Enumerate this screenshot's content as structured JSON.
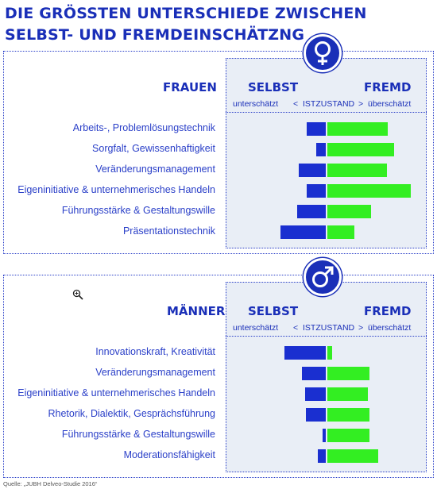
{
  "title": {
    "line1": "DIE GRÖSSTEN UNTERSCHIEDE ZWISCHEN",
    "line2": "SELBST- UND FREMDEINSCHÄTZNG"
  },
  "header": {
    "selbst": "SELBST",
    "fremd": "FREMD",
    "under": "unterschätzt",
    "lt": "<",
    "ist": "ISTZUSTAND",
    "gt": ">",
    "over": "überschätzt"
  },
  "icons": {
    "female": "female-symbol-icon",
    "male": "male-symbol-icon",
    "zoom": "zoom-in-icon"
  },
  "colors": {
    "primary": "#1a2fb8",
    "selbst_bar": "#1a2fd0",
    "fremd_bar": "#33ee22",
    "panel_shade": "#e9eef6"
  },
  "source": "Quelle: „JUBH Delveo-Studie 2016“",
  "chart_data": [
    {
      "type": "bar",
      "group": "FRAUEN",
      "categories": [
        "Arbeits-,  Problemlösungstechnik",
        "Sorgfalt, Gewissenhaftigkeit",
        "Veränderungsmanagement",
        "Eigeninitiative & unternehmerisches Handeln",
        "Führungsstärke & Gestaltungswille",
        "Präsentationstechnik"
      ],
      "series": [
        {
          "name": "SELBST",
          "values": [
            -0.95,
            -0.5,
            -1.35,
            -0.95,
            -1.45,
            -2.3
          ]
        },
        {
          "name": "FREMD",
          "values": [
            3.05,
            3.35,
            3.0,
            4.2,
            2.2,
            1.35
          ]
        }
      ]
    },
    {
      "type": "bar",
      "group": "MÄNNER",
      "categories": [
        "Innovationskraft, Kreativität",
        "Veränderungsmanagement",
        "Eigeninitiative & unternehmerisches Handeln",
        "Rhetorik, Dialektik, Gesprächsführung",
        "Führungsstärke & Gestaltungswille",
        "Moderationsfähigkeit"
      ],
      "series": [
        {
          "name": "SELBST",
          "values": [
            -2.1,
            -1.2,
            -1.05,
            -1.0,
            -0.15,
            -0.4
          ]
        },
        {
          "name": "FREMD",
          "values": [
            0.25,
            2.1,
            2.05,
            2.1,
            2.1,
            2.55
          ]
        }
      ]
    }
  ]
}
